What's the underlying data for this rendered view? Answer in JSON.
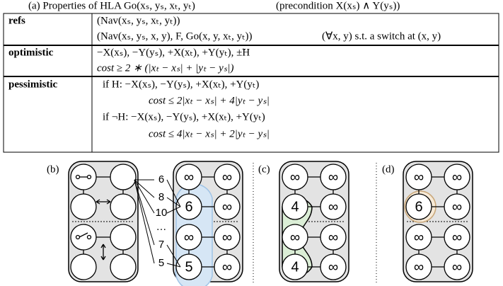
{
  "caption": {
    "text": "(a) Properties of HLA Go(xₛ, yₛ, xₜ, yₜ)",
    "precondition": "(precondition X(xₛ) ∧ Y(yₛ))"
  },
  "table": {
    "rows": [
      {
        "head": "refs",
        "lines": [
          "(Nav(xₛ, yₛ, xₜ, yₜ))",
          "(Nav(xₛ, yₛ, x, y), F, Go(x, y, xₜ, yₜ))"
        ],
        "note": "(∀x, y) s.t. a switch at (x, y)"
      },
      {
        "head": "optimistic",
        "lines": [
          "−X(xₛ), −Y(yₛ), +X(xₜ), +Y(yₜ), ±̃H",
          "cost ≥ 2 ∗ (|xₜ − xₛ| + |yₜ − yₛ|)"
        ]
      },
      {
        "head": "pessimistic",
        "lines": [
          "if  H: −X(xₛ), −Y(yₛ), +X(xₜ), +Y(yₜ)",
          "cost ≤ 2|xₜ − xₛ| + 4|yₜ − yₛ|",
          "if  ¬H: −X(xₛ), −Y(yₛ), +X(xₜ), +Y(yₜ)",
          "cost ≤ 4|xₜ − xₛ| + 2|yₜ − yₛ|"
        ]
      }
    ]
  },
  "diagrams": {
    "b": {
      "label": "(b)",
      "numbers": [
        "6",
        "8",
        "10",
        "…",
        "7",
        "5"
      ],
      "nodes": [
        "∞",
        "∞",
        "6",
        "∞",
        "∞",
        "∞",
        "5",
        "∞"
      ]
    },
    "c": {
      "label": "(c)",
      "nodes": [
        "∞",
        "∞",
        "4",
        "∞",
        "∞",
        "∞",
        "4",
        "∞"
      ]
    },
    "d": {
      "label": "(d)",
      "nodes": [
        "∞",
        "∞",
        "6",
        "∞",
        "∞",
        "∞",
        "∞",
        "∞"
      ]
    }
  }
}
